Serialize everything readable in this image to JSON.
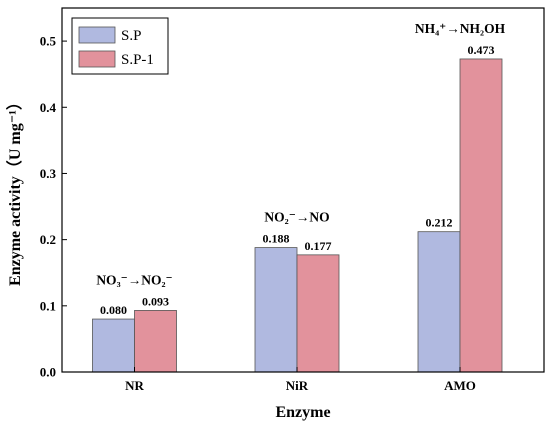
{
  "chart_data": {
    "type": "bar",
    "categories": [
      "NR",
      "NiR",
      "AMO"
    ],
    "series": [
      {
        "name": "S.P",
        "values": [
          0.08,
          0.188,
          0.212
        ],
        "color": "#b0b9e0"
      },
      {
        "name": "S.P-1",
        "values": [
          0.093,
          0.177,
          0.473
        ],
        "color": "#e2929c"
      }
    ],
    "value_labels": [
      [
        "0.080",
        "0.188",
        "0.212"
      ],
      [
        "0.093",
        "0.177",
        "0.473"
      ]
    ],
    "xlabel": "Enzyme",
    "ylabel": "Enzyme activity（U mg⁻¹）",
    "ylim": [
      0,
      0.55
    ],
    "yticks": [
      0.0,
      0.1,
      0.2,
      0.3,
      0.4,
      0.5
    ],
    "ytick_labels": [
      "0.0",
      "0.1",
      "0.2",
      "0.3",
      "0.4",
      "0.5"
    ],
    "annotations": [
      "NO₃⁻→NO₂⁻",
      "NO₂⁻→NO",
      "NH₄⁺→NH₂OH"
    ],
    "grid": false,
    "legend_position": "top-left"
  }
}
